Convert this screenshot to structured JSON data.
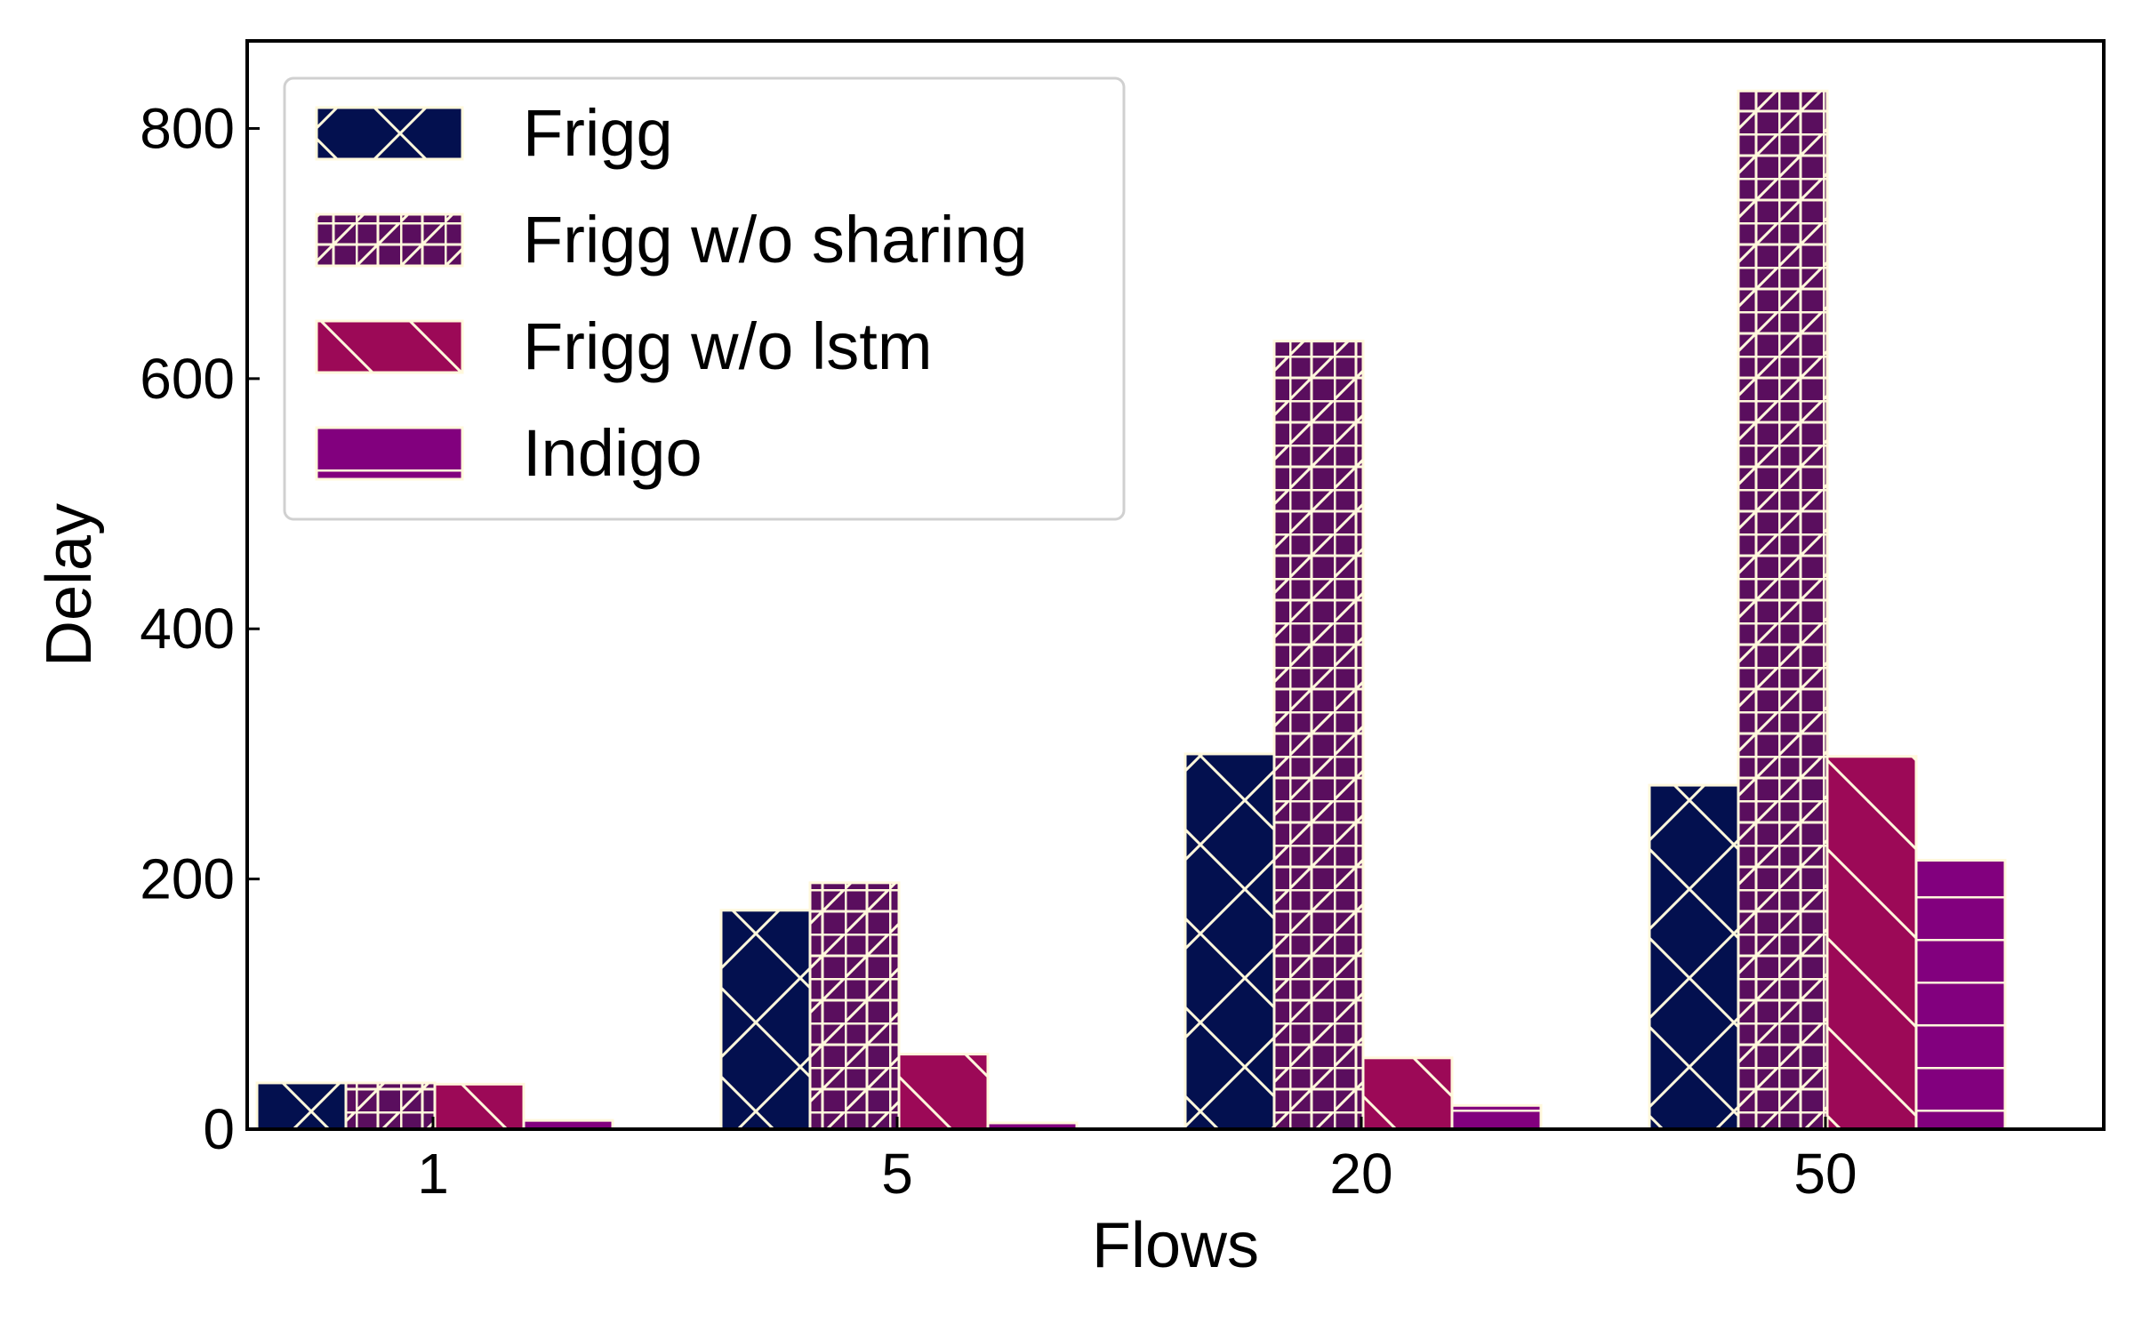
{
  "chart_data": {
    "type": "bar",
    "title": "",
    "xlabel": "Flows",
    "ylabel": "Delay",
    "categories": [
      "1",
      "5",
      "20",
      "50"
    ],
    "ylim": [
      0,
      870
    ],
    "yticks": [
      0,
      200,
      400,
      600,
      800
    ],
    "grid": false,
    "legend_position": "top-left",
    "series": [
      {
        "name": "Frigg",
        "color": "#03104f",
        "hatch": "crosshatch-diagonal",
        "values": [
          37,
          175,
          300,
          275
        ]
      },
      {
        "name": "Frigg w/o sharing",
        "color": "#5a0e5e",
        "hatch": "grid-and-forward-diagonal",
        "values": [
          37,
          197,
          630,
          830
        ]
      },
      {
        "name": "Frigg w/o lstm",
        "color": "#9c0957",
        "hatch": "back-diagonal",
        "values": [
          36,
          60,
          57,
          298
        ]
      },
      {
        "name": "Indigo",
        "color": "#82007e",
        "hatch": "horizontal",
        "values": [
          7,
          5,
          19,
          215
        ]
      }
    ],
    "hatch_color": "#fff8dc",
    "axes_color": "#000000"
  }
}
